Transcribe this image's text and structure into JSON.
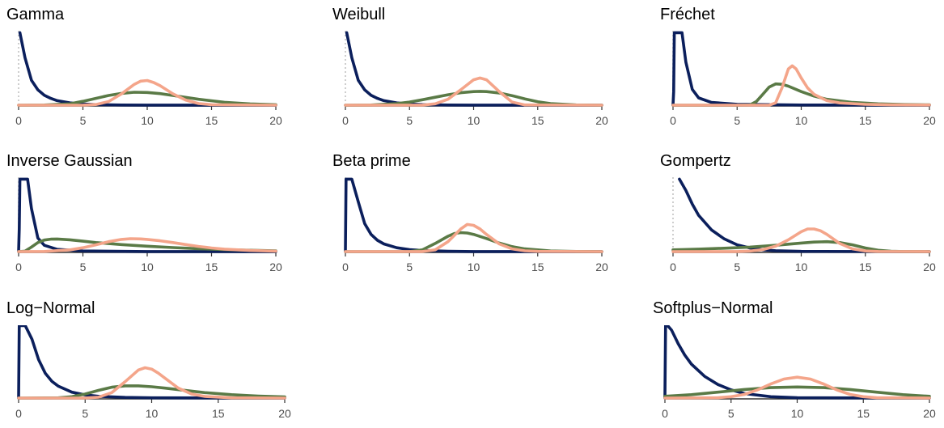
{
  "colors": {
    "series_a": "#0b1f5c",
    "series_b": "#5a7a46",
    "series_c": "#f4a58a",
    "zero_line": "#bdbdbd",
    "axis": "#333333"
  },
  "chart_data": [
    {
      "type": "line",
      "title": "Gamma",
      "x_ticks": [
        0,
        5,
        10,
        15,
        20
      ],
      "xlim": [
        0,
        20
      ],
      "grid": false,
      "legend": "none",
      "series": [
        {
          "x": [
            0.1,
            0.5,
            1,
            1.5,
            2,
            2.5,
            3,
            4,
            5,
            6,
            8,
            10,
            20
          ],
          "y": [
            1.6,
            1.05,
            0.55,
            0.34,
            0.22,
            0.15,
            0.1,
            0.05,
            0.025,
            0.012,
            0.003,
            0.001,
            0
          ]
        },
        {
          "x": [
            0,
            2,
            4,
            5,
            6,
            7,
            8,
            9,
            10,
            11,
            12,
            14,
            16,
            18,
            20
          ],
          "y": [
            0,
            0.003,
            0.03,
            0.085,
            0.15,
            0.215,
            0.26,
            0.285,
            0.28,
            0.255,
            0.215,
            0.13,
            0.065,
            0.028,
            0.01
          ]
        },
        {
          "x": [
            0,
            5,
            6,
            7,
            8,
            9,
            9.5,
            10,
            10.5,
            11,
            12,
            13,
            14,
            15,
            20
          ],
          "y": [
            0,
            0.002,
            0.015,
            0.08,
            0.25,
            0.46,
            0.53,
            0.545,
            0.5,
            0.43,
            0.25,
            0.11,
            0.035,
            0.01,
            0
          ]
        }
      ]
    },
    {
      "type": "line",
      "title": "Weibull",
      "x_ticks": [
        0,
        5,
        10,
        15,
        20
      ],
      "xlim": [
        0,
        20
      ],
      "grid": false,
      "legend": "none",
      "series": [
        {
          "x": [
            0.1,
            0.5,
            1,
            1.5,
            2,
            2.5,
            3,
            4,
            5,
            6,
            8,
            10,
            20
          ],
          "y": [
            1.6,
            1.05,
            0.55,
            0.34,
            0.22,
            0.15,
            0.1,
            0.05,
            0.025,
            0.012,
            0.003,
            0.001,
            0
          ]
        },
        {
          "x": [
            0,
            2,
            4,
            5,
            6,
            7,
            8,
            9,
            10,
            10.5,
            11,
            12,
            13,
            14,
            15,
            16,
            18,
            20
          ],
          "y": [
            0,
            0.004,
            0.035,
            0.07,
            0.12,
            0.175,
            0.23,
            0.275,
            0.3,
            0.305,
            0.3,
            0.27,
            0.21,
            0.14,
            0.075,
            0.035,
            0.006,
            0
          ]
        },
        {
          "x": [
            0,
            6,
            7,
            8,
            9,
            10,
            10.5,
            11,
            12,
            13,
            14,
            20
          ],
          "y": [
            0,
            0.002,
            0.03,
            0.13,
            0.34,
            0.56,
            0.6,
            0.56,
            0.3,
            0.07,
            0.005,
            0
          ]
        }
      ]
    },
    {
      "type": "line",
      "title": "Fréchet",
      "x_ticks": [
        0,
        5,
        10,
        15,
        20
      ],
      "xlim": [
        0,
        20
      ],
      "grid": false,
      "legend": "none",
      "series": [
        {
          "x": [
            0,
            0.05,
            0.1,
            0.2,
            0.3,
            0.5,
            0.7,
            1,
            1.5,
            2,
            3,
            5,
            10,
            20
          ],
          "y": [
            0,
            0.3,
            1.6,
            1.6,
            1.6,
            1.6,
            1.6,
            0.95,
            0.35,
            0.16,
            0.06,
            0.02,
            0.004,
            0
          ]
        },
        {
          "x": [
            0,
            5,
            6,
            6.5,
            7,
            7.5,
            8,
            8.5,
            9,
            10,
            11,
            12,
            14,
            16,
            18,
            20
          ],
          "y": [
            0,
            0,
            0.005,
            0.08,
            0.24,
            0.4,
            0.47,
            0.46,
            0.42,
            0.3,
            0.2,
            0.13,
            0.06,
            0.03,
            0.015,
            0.008
          ]
        },
        {
          "x": [
            0,
            7.5,
            8,
            8.5,
            9,
            9.3,
            9.6,
            10,
            10.5,
            11,
            12,
            13,
            15,
            17,
            20
          ],
          "y": [
            0,
            0,
            0.05,
            0.38,
            0.8,
            0.87,
            0.8,
            0.6,
            0.38,
            0.24,
            0.1,
            0.05,
            0.018,
            0.008,
            0.003
          ]
        }
      ]
    },
    {
      "type": "line",
      "title": "Inverse Gaussian",
      "x_ticks": [
        0,
        5,
        10,
        15,
        20
      ],
      "xlim": [
        0,
        20
      ],
      "grid": false,
      "legend": "none",
      "series": [
        {
          "x": [
            0,
            0.05,
            0.1,
            0.2,
            0.3,
            0.5,
            0.7,
            1,
            1.5,
            2,
            3,
            5,
            10,
            20
          ],
          "y": [
            0,
            0.5,
            1.6,
            1.6,
            1.6,
            1.6,
            1.6,
            0.95,
            0.3,
            0.14,
            0.05,
            0.015,
            0.002,
            0
          ]
        },
        {
          "x": [
            0,
            0.5,
            1,
            1.5,
            2,
            2.5,
            3,
            3.5,
            4,
            5,
            6,
            8,
            10,
            12,
            14,
            16,
            18,
            20
          ],
          "y": [
            0,
            0.01,
            0.1,
            0.2,
            0.255,
            0.275,
            0.278,
            0.27,
            0.26,
            0.23,
            0.2,
            0.155,
            0.12,
            0.09,
            0.065,
            0.045,
            0.03,
            0.018
          ]
        },
        {
          "x": [
            0,
            2,
            4,
            5,
            6,
            7,
            8,
            8.7,
            9.5,
            10,
            11,
            12,
            13,
            14,
            15,
            16,
            18,
            20
          ],
          "y": [
            0,
            0.004,
            0.04,
            0.085,
            0.15,
            0.22,
            0.27,
            0.285,
            0.28,
            0.27,
            0.24,
            0.2,
            0.155,
            0.115,
            0.08,
            0.055,
            0.025,
            0.01
          ]
        }
      ]
    },
    {
      "type": "line",
      "title": "Beta prime",
      "x_ticks": [
        0,
        5,
        10,
        15,
        20
      ],
      "xlim": [
        0,
        20
      ],
      "grid": false,
      "legend": "none",
      "series": [
        {
          "x": [
            0,
            0.05,
            0.1,
            0.2,
            0.5,
            1,
            1.5,
            2,
            2.5,
            3,
            4,
            5,
            6,
            8,
            10,
            20
          ],
          "y": [
            0,
            1.6,
            1.6,
            1.6,
            1.6,
            1.1,
            0.62,
            0.38,
            0.25,
            0.17,
            0.085,
            0.045,
            0.025,
            0.008,
            0.002,
            0
          ]
        },
        {
          "x": [
            0,
            5,
            6,
            7,
            8,
            8.5,
            9,
            9.5,
            10,
            11,
            12,
            13,
            14,
            16,
            18,
            20
          ],
          "y": [
            0,
            0.002,
            0.04,
            0.18,
            0.34,
            0.4,
            0.42,
            0.41,
            0.38,
            0.29,
            0.19,
            0.11,
            0.06,
            0.015,
            0.004,
            0
          ]
        },
        {
          "x": [
            0,
            6,
            7,
            8,
            9,
            9.5,
            10,
            10.5,
            11,
            12,
            13,
            14,
            15,
            20
          ],
          "y": [
            0,
            0.002,
            0.04,
            0.22,
            0.5,
            0.6,
            0.58,
            0.5,
            0.38,
            0.17,
            0.06,
            0.018,
            0.005,
            0
          ]
        }
      ]
    },
    {
      "type": "line",
      "title": "Gompertz",
      "x_ticks": [
        0,
        5,
        10,
        15,
        20
      ],
      "xlim": [
        0,
        20
      ],
      "grid": false,
      "legend": "none",
      "series": [
        {
          "x": [
            0.5,
            1,
            1.5,
            2,
            3,
            4,
            5,
            6,
            7,
            8,
            10,
            20
          ],
          "y": [
            1.6,
            1.35,
            1.05,
            0.8,
            0.48,
            0.28,
            0.15,
            0.08,
            0.04,
            0.02,
            0.005,
            0
          ]
        },
        {
          "x": [
            0,
            2,
            4,
            6,
            8,
            10,
            11,
            12,
            13,
            14,
            15,
            16,
            17,
            18,
            20
          ],
          "y": [
            0.04,
            0.055,
            0.075,
            0.1,
            0.14,
            0.19,
            0.21,
            0.22,
            0.2,
            0.15,
            0.08,
            0.03,
            0.008,
            0.002,
            0
          ]
        },
        {
          "x": [
            0,
            5,
            6,
            7,
            8,
            9,
            10,
            10.5,
            11,
            11.5,
            12,
            13,
            14,
            15,
            16,
            20
          ],
          "y": [
            0,
            0.002,
            0.012,
            0.045,
            0.12,
            0.26,
            0.44,
            0.5,
            0.5,
            0.46,
            0.38,
            0.18,
            0.06,
            0.015,
            0.003,
            0
          ]
        }
      ]
    },
    {
      "type": "line",
      "title": "Log−Normal",
      "x_ticks": [
        0,
        5,
        10,
        15,
        20
      ],
      "xlim": [
        0,
        20
      ],
      "grid": false,
      "legend": "none",
      "series": [
        {
          "x": [
            0,
            0.05,
            0.1,
            0.2,
            0.5,
            1,
            1.5,
            2,
            2.5,
            3,
            4,
            5,
            6,
            8,
            10,
            20
          ],
          "y": [
            0,
            1.6,
            1.6,
            1.6,
            1.6,
            1.3,
            0.85,
            0.55,
            0.37,
            0.26,
            0.13,
            0.07,
            0.04,
            0.014,
            0.005,
            0
          ]
        },
        {
          "x": [
            0,
            3,
            4,
            5,
            6,
            7,
            8,
            9,
            10,
            11,
            12,
            14,
            16,
            18,
            20
          ],
          "y": [
            0,
            0.005,
            0.03,
            0.09,
            0.17,
            0.24,
            0.27,
            0.27,
            0.25,
            0.22,
            0.185,
            0.12,
            0.075,
            0.045,
            0.025
          ]
        },
        {
          "x": [
            0,
            5,
            6,
            7,
            8,
            9,
            9.5,
            10,
            10.5,
            11,
            12,
            13,
            14,
            16,
            20
          ],
          "y": [
            0,
            0.001,
            0.02,
            0.12,
            0.36,
            0.62,
            0.67,
            0.64,
            0.55,
            0.44,
            0.22,
            0.09,
            0.035,
            0.005,
            0
          ]
        }
      ]
    },
    {
      "type": "line",
      "title": "Softplus−Normal",
      "x_ticks": [
        0,
        5,
        10,
        15,
        20
      ],
      "xlim": [
        0,
        20
      ],
      "grid": false,
      "legend": "none",
      "series": [
        {
          "x": [
            0,
            0.05,
            0.1,
            0.2,
            0.5,
            1,
            1.5,
            2,
            3,
            4,
            5,
            6,
            8,
            10,
            20
          ],
          "y": [
            0,
            1.6,
            1.6,
            1.6,
            1.5,
            1.2,
            0.95,
            0.75,
            0.48,
            0.3,
            0.18,
            0.1,
            0.03,
            0.008,
            0
          ]
        },
        {
          "x": [
            0,
            2,
            4,
            6,
            8,
            10,
            12,
            14,
            16,
            18,
            20
          ],
          "y": [
            0.04,
            0.075,
            0.13,
            0.19,
            0.23,
            0.245,
            0.23,
            0.19,
            0.13,
            0.075,
            0.04
          ]
        },
        {
          "x": [
            0,
            4,
            5,
            6,
            7,
            8,
            9,
            10,
            11,
            12,
            13,
            14,
            15,
            16,
            20
          ],
          "y": [
            0,
            0.008,
            0.03,
            0.08,
            0.18,
            0.31,
            0.42,
            0.46,
            0.42,
            0.31,
            0.18,
            0.08,
            0.03,
            0.008,
            0
          ]
        }
      ]
    }
  ]
}
